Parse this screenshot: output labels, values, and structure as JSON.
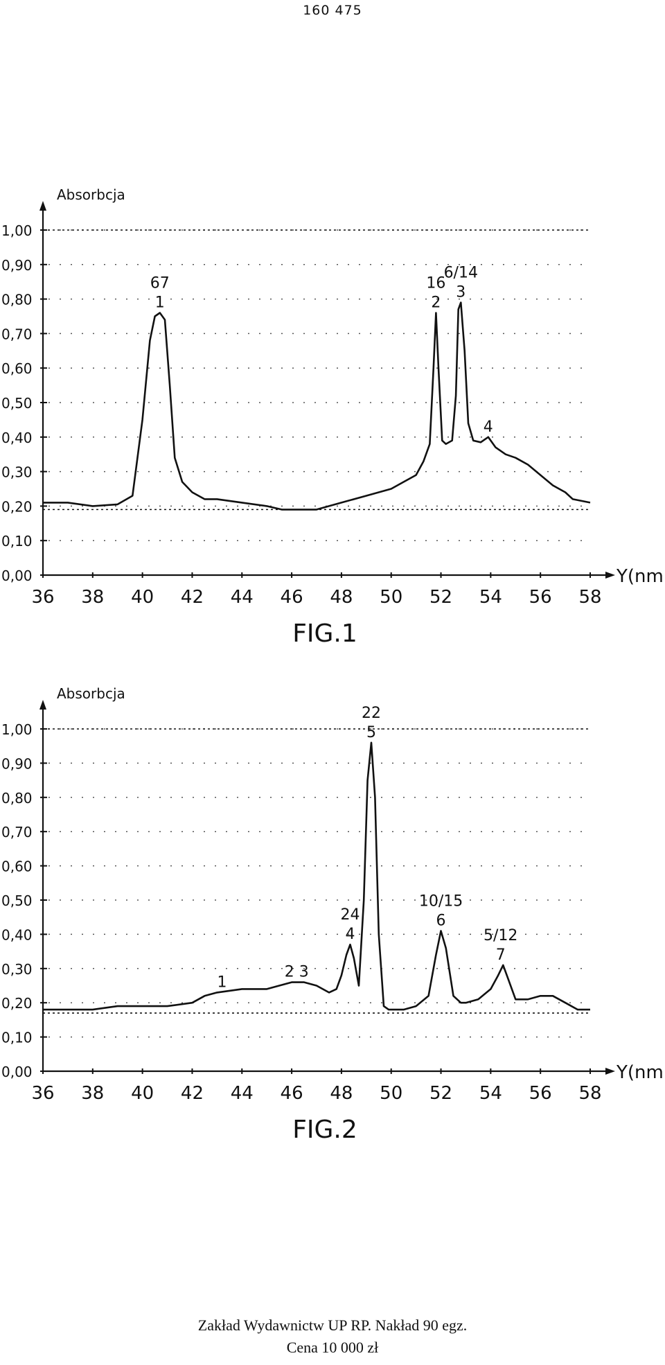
{
  "page": {
    "number": "160 475",
    "footer_line1": "Zakład Wydawnictw UP RP. Nakład 90 egz.",
    "footer_line2": "Cena 10 000 zł"
  },
  "chart_data": [
    {
      "type": "line",
      "title": "",
      "caption": "FIG.1",
      "ylabel": "Absorbcja",
      "xlabel": "Y(nm)",
      "xlim": [
        36,
        58
      ],
      "ylim": [
        0,
        1
      ],
      "xticks": [
        "36",
        "38",
        "40",
        "42",
        "44",
        "46",
        "48",
        "50",
        "52",
        "54",
        "56",
        "58"
      ],
      "yticks": [
        "0,00",
        "0,10",
        "0,20",
        "0,30",
        "0,40",
        "0,50",
        "0,60",
        "0,70",
        "0,80",
        "0,90",
        "1,00"
      ],
      "grid": "dotted",
      "reference_lines": [
        1.0,
        0.19
      ],
      "series": [
        {
          "x": [
            36,
            37,
            38,
            39,
            39.6,
            40,
            40.3,
            40.5,
            40.7,
            40.9,
            41.1,
            41.3,
            41.6,
            42,
            42.5,
            43,
            44,
            45,
            45.6,
            46,
            47,
            48,
            49,
            50,
            50.5,
            51,
            51.3,
            51.55,
            51.7,
            51.8,
            51.9,
            52.05,
            52.2,
            52.45,
            52.6,
            52.7,
            52.8,
            52.95,
            53.1,
            53.3,
            53.6,
            53.9,
            54.2,
            54.6,
            55,
            55.5,
            56,
            56.5,
            57,
            57.3,
            58
          ],
          "y": [
            0.21,
            0.21,
            0.2,
            0.205,
            0.23,
            0.45,
            0.68,
            0.75,
            0.76,
            0.74,
            0.55,
            0.34,
            0.27,
            0.24,
            0.22,
            0.22,
            0.21,
            0.2,
            0.19,
            0.19,
            0.19,
            0.21,
            0.23,
            0.25,
            0.27,
            0.29,
            0.33,
            0.38,
            0.6,
            0.76,
            0.6,
            0.39,
            0.38,
            0.39,
            0.52,
            0.77,
            0.79,
            0.65,
            0.44,
            0.39,
            0.385,
            0.4,
            0.37,
            0.35,
            0.34,
            0.32,
            0.29,
            0.26,
            0.24,
            0.22,
            0.21
          ]
        }
      ],
      "peaks": [
        {
          "x": 40.7,
          "y": 0.76,
          "id": "1",
          "label": "67"
        },
        {
          "x": 51.8,
          "y": 0.76,
          "id": "2",
          "label": "16"
        },
        {
          "x": 52.8,
          "y": 0.79,
          "id": "3",
          "label": "6/14"
        },
        {
          "x": 53.9,
          "y": 0.4,
          "id": "4",
          "label": ""
        }
      ]
    },
    {
      "type": "line",
      "title": "",
      "caption": "FIG.2",
      "ylabel": "Absorbcja",
      "xlabel": "Y(nm)",
      "xlim": [
        36,
        58
      ],
      "ylim": [
        0,
        1
      ],
      "xticks": [
        "36",
        "38",
        "40",
        "42",
        "44",
        "46",
        "48",
        "50",
        "52",
        "54",
        "56",
        "58"
      ],
      "yticks": [
        "0,00",
        "0,10",
        "0,20",
        "0,30",
        "0,40",
        "0,50",
        "0,60",
        "0,70",
        "0,80",
        "0,90",
        "1,00"
      ],
      "grid": "dotted",
      "reference_lines": [
        1.0,
        0.17
      ],
      "series": [
        {
          "x": [
            36,
            37,
            38,
            39,
            39.6,
            40,
            40.5,
            41,
            42,
            42.5,
            43,
            44,
            45,
            45.5,
            46,
            46.5,
            47,
            47.5,
            47.8,
            48,
            48.2,
            48.35,
            48.5,
            48.7,
            48.9,
            49.05,
            49.2,
            49.35,
            49.5,
            49.7,
            49.9,
            50.1,
            50.5,
            51,
            51.5,
            51.8,
            52,
            52.2,
            52.5,
            52.8,
            53,
            53.5,
            54,
            54.3,
            54.5,
            54.7,
            55,
            55.5,
            56,
            56.5,
            57,
            57.5,
            58
          ],
          "y": [
            0.18,
            0.18,
            0.18,
            0.19,
            0.19,
            0.19,
            0.19,
            0.19,
            0.2,
            0.22,
            0.23,
            0.24,
            0.24,
            0.25,
            0.26,
            0.26,
            0.25,
            0.23,
            0.24,
            0.28,
            0.34,
            0.37,
            0.33,
            0.25,
            0.5,
            0.85,
            0.96,
            0.8,
            0.4,
            0.19,
            0.18,
            0.18,
            0.18,
            0.19,
            0.22,
            0.34,
            0.41,
            0.36,
            0.22,
            0.2,
            0.2,
            0.21,
            0.24,
            0.28,
            0.31,
            0.27,
            0.21,
            0.21,
            0.22,
            0.22,
            0.2,
            0.18,
            0.18
          ]
        }
      ],
      "peaks": [
        {
          "x": 43.2,
          "y": 0.23,
          "id": "1",
          "label": ""
        },
        {
          "x": 46.2,
          "y": 0.26,
          "id": "2 3",
          "label": ""
        },
        {
          "x": 48.35,
          "y": 0.37,
          "id": "4",
          "label": "24"
        },
        {
          "x": 49.2,
          "y": 0.96,
          "id": "5",
          "label": "22"
        },
        {
          "x": 52.0,
          "y": 0.41,
          "id": "6",
          "label": "10/15"
        },
        {
          "x": 54.4,
          "y": 0.31,
          "id": "7",
          "label": "5/12"
        }
      ]
    }
  ]
}
